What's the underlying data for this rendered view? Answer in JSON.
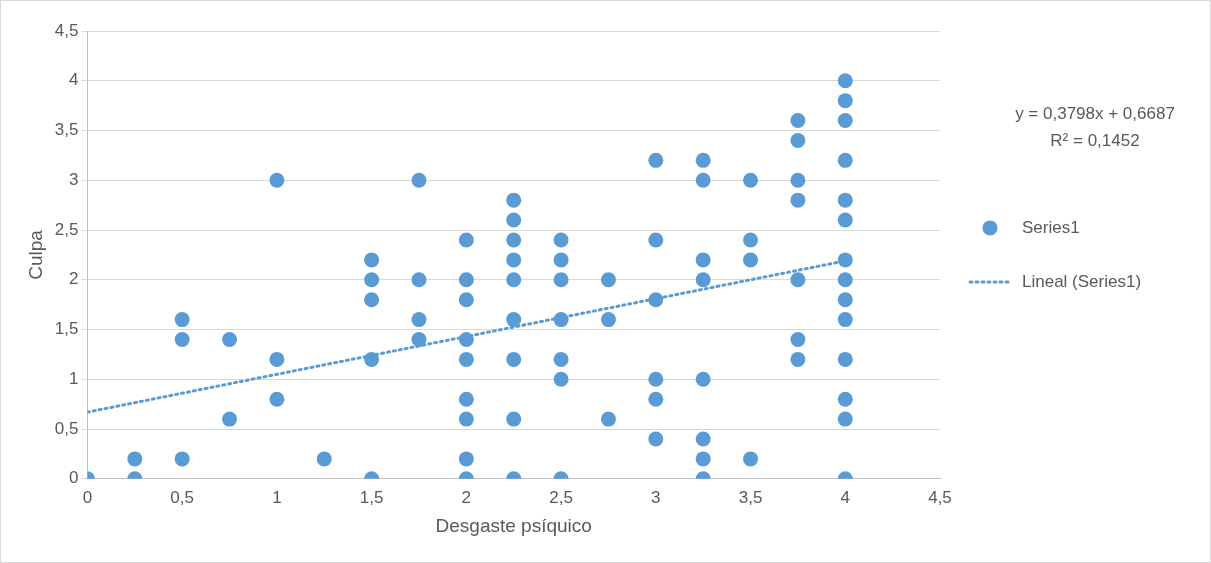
{
  "chart_data": {
    "type": "scatter",
    "xlabel": "Desgaste psíquico",
    "ylabel": "Culpa",
    "xlim": [
      0,
      4.5
    ],
    "xticks": [
      0,
      {
        "value": 0.5,
        "label": "0,5"
      },
      1,
      {
        "value": 1.5,
        "label": "1,5"
      },
      2,
      {
        "value": 2.5,
        "label": "2,5"
      },
      3,
      {
        "value": 3.5,
        "label": "3,5"
      },
      4,
      {
        "value": 4.5,
        "label": "4,5"
      }
    ],
    "ylim": [
      0,
      4.5
    ],
    "yticks": [
      0,
      {
        "value": 0.5,
        "label": "0,5"
      },
      1,
      {
        "value": 1.5,
        "label": "1,5"
      },
      2,
      {
        "value": 2.5,
        "label": "2,5"
      },
      3,
      {
        "value": 3.5,
        "label": "3,5"
      },
      4,
      {
        "value": 4.5,
        "label": "4,5"
      }
    ],
    "grid": "y",
    "legend": "right",
    "marker": "circle",
    "annotations": [
      "y = 0,3798x + 0,6687",
      "R² = 0,1452"
    ],
    "series": [
      {
        "name": "Series1",
        "color": "#5b9bd5",
        "x": [
          0,
          0.25,
          0.25,
          0.5,
          0.5,
          0.5,
          0.75,
          0.75,
          1,
          1,
          1,
          1.25,
          1.5,
          1.5,
          1.5,
          1.5,
          1.5,
          1.75,
          1.75,
          1.75,
          1.75,
          2,
          2,
          2,
          2,
          2,
          2,
          2,
          2,
          2,
          2.25,
          2.25,
          2.25,
          2.25,
          2.25,
          2.25,
          2.25,
          2.25,
          2.25,
          2.5,
          2.5,
          2.5,
          2.5,
          2.5,
          2.5,
          2.5,
          2.75,
          2.75,
          2.75,
          3,
          3,
          3,
          3,
          3,
          3,
          3.25,
          3.25,
          3.25,
          3.25,
          3.25,
          3.25,
          3.25,
          3.25,
          3.5,
          3.5,
          3.5,
          3.5,
          3.75,
          3.75,
          3.75,
          3.75,
          3.75,
          3.75,
          3.75,
          4,
          4,
          4,
          4,
          4,
          4,
          4,
          4,
          4,
          4,
          4,
          4,
          4,
          4
        ],
        "values": [
          0,
          0.2,
          0,
          1.6,
          1.4,
          0.2,
          1.4,
          0.6,
          3,
          1.2,
          0.8,
          0.2,
          2.2,
          2,
          1.8,
          1.2,
          0,
          3,
          2,
          1.6,
          1.4,
          2.4,
          2,
          1.8,
          1.4,
          1.2,
          0.8,
          0.6,
          0.2,
          0,
          2.8,
          2.6,
          2.4,
          2.2,
          2,
          1.6,
          1.2,
          0.6,
          0,
          2.4,
          2.2,
          2,
          1.6,
          1.2,
          1,
          0,
          2,
          1.6,
          0.6,
          3.2,
          2.4,
          1.8,
          1,
          0.8,
          0.4,
          3.2,
          3,
          2.2,
          2,
          1,
          0.4,
          0.2,
          0,
          3,
          2.4,
          2.2,
          0.2,
          3.6,
          3.4,
          3,
          2.8,
          2,
          1.4,
          1.2,
          4,
          3.8,
          3.6,
          3.2,
          2.8,
          2.6,
          2.2,
          2,
          1.8,
          1.6,
          1.2,
          0.8,
          0.6,
          0
        ]
      },
      {
        "name": "Lineal (Series1)",
        "type": "line",
        "color": "#5b9bd5",
        "line_style": "dotted",
        "marker": "none",
        "x": [
          0,
          4
        ],
        "values": [
          0.67,
          2.19
        ]
      }
    ]
  }
}
